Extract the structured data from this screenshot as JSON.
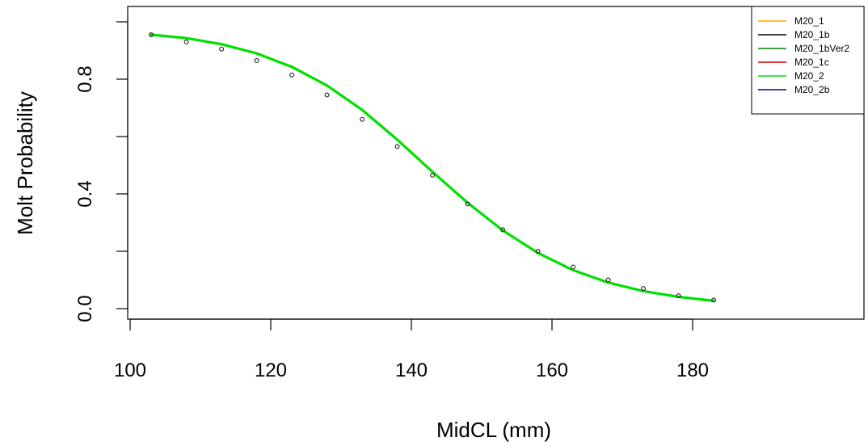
{
  "chart_data": {
    "type": "line",
    "title": "",
    "xlabel": "MidCL (mm)",
    "ylabel": "Molt Probability",
    "xlim": [
      100,
      185
    ],
    "ylim": [
      0.0,
      1.0
    ],
    "x_ticks": [
      100,
      120,
      140,
      160,
      180
    ],
    "x_tick_labels": [
      "100",
      "120",
      "140",
      "160",
      "180"
    ],
    "y_ticks": [
      0.0,
      0.4,
      0.8
    ],
    "y_tick_labels": [
      "0.0",
      "0.4",
      "0.8"
    ],
    "grid": false,
    "legend_position": "top-right",
    "x": [
      103,
      108,
      113,
      118,
      123,
      128,
      133,
      138,
      143,
      148,
      153,
      158,
      163,
      168,
      173,
      178,
      183
    ],
    "observed": [
      0.955,
      0.93,
      0.905,
      0.865,
      0.815,
      0.745,
      0.66,
      0.565,
      0.465,
      0.365,
      0.275,
      0.2,
      0.145,
      0.1,
      0.07,
      0.045,
      0.03
    ],
    "series": [
      {
        "name": "M20_1",
        "color": "#FFA500",
        "values": [
          0.955,
          0.943,
          0.922,
          0.89,
          0.843,
          0.778,
          0.693,
          0.589,
          0.477,
          0.369,
          0.273,
          0.194,
          0.134,
          0.091,
          0.061,
          0.041,
          0.027
        ]
      },
      {
        "name": "M20_1b",
        "color": "#000000",
        "values": [
          0.955,
          0.943,
          0.922,
          0.89,
          0.843,
          0.778,
          0.693,
          0.589,
          0.477,
          0.369,
          0.273,
          0.194,
          0.134,
          0.091,
          0.061,
          0.041,
          0.027
        ]
      },
      {
        "name": "M20_1bVer2",
        "color": "#008000",
        "values": [
          0.955,
          0.943,
          0.922,
          0.89,
          0.843,
          0.778,
          0.693,
          0.589,
          0.477,
          0.369,
          0.273,
          0.194,
          0.134,
          0.091,
          0.061,
          0.041,
          0.027
        ]
      },
      {
        "name": "M20_1c",
        "color": "#CC0000",
        "values": [
          0.955,
          0.943,
          0.922,
          0.89,
          0.843,
          0.778,
          0.693,
          0.589,
          0.477,
          0.369,
          0.273,
          0.194,
          0.134,
          0.091,
          0.061,
          0.041,
          0.027
        ]
      },
      {
        "name": "M20_2",
        "color": "#00E000",
        "values": [
          0.955,
          0.943,
          0.922,
          0.89,
          0.843,
          0.778,
          0.693,
          0.589,
          0.477,
          0.369,
          0.273,
          0.194,
          0.134,
          0.091,
          0.061,
          0.041,
          0.027
        ]
      },
      {
        "name": "M20_2b",
        "color": "#000080",
        "values": [
          0.955,
          0.943,
          0.922,
          0.89,
          0.843,
          0.778,
          0.693,
          0.589,
          0.477,
          0.369,
          0.273,
          0.194,
          0.134,
          0.091,
          0.061,
          0.041,
          0.027
        ]
      }
    ],
    "draw_order": [
      "M20_1",
      "M20_1b",
      "M20_1c",
      "M20_2b",
      "M20_1bVer2",
      "M20_2"
    ]
  }
}
